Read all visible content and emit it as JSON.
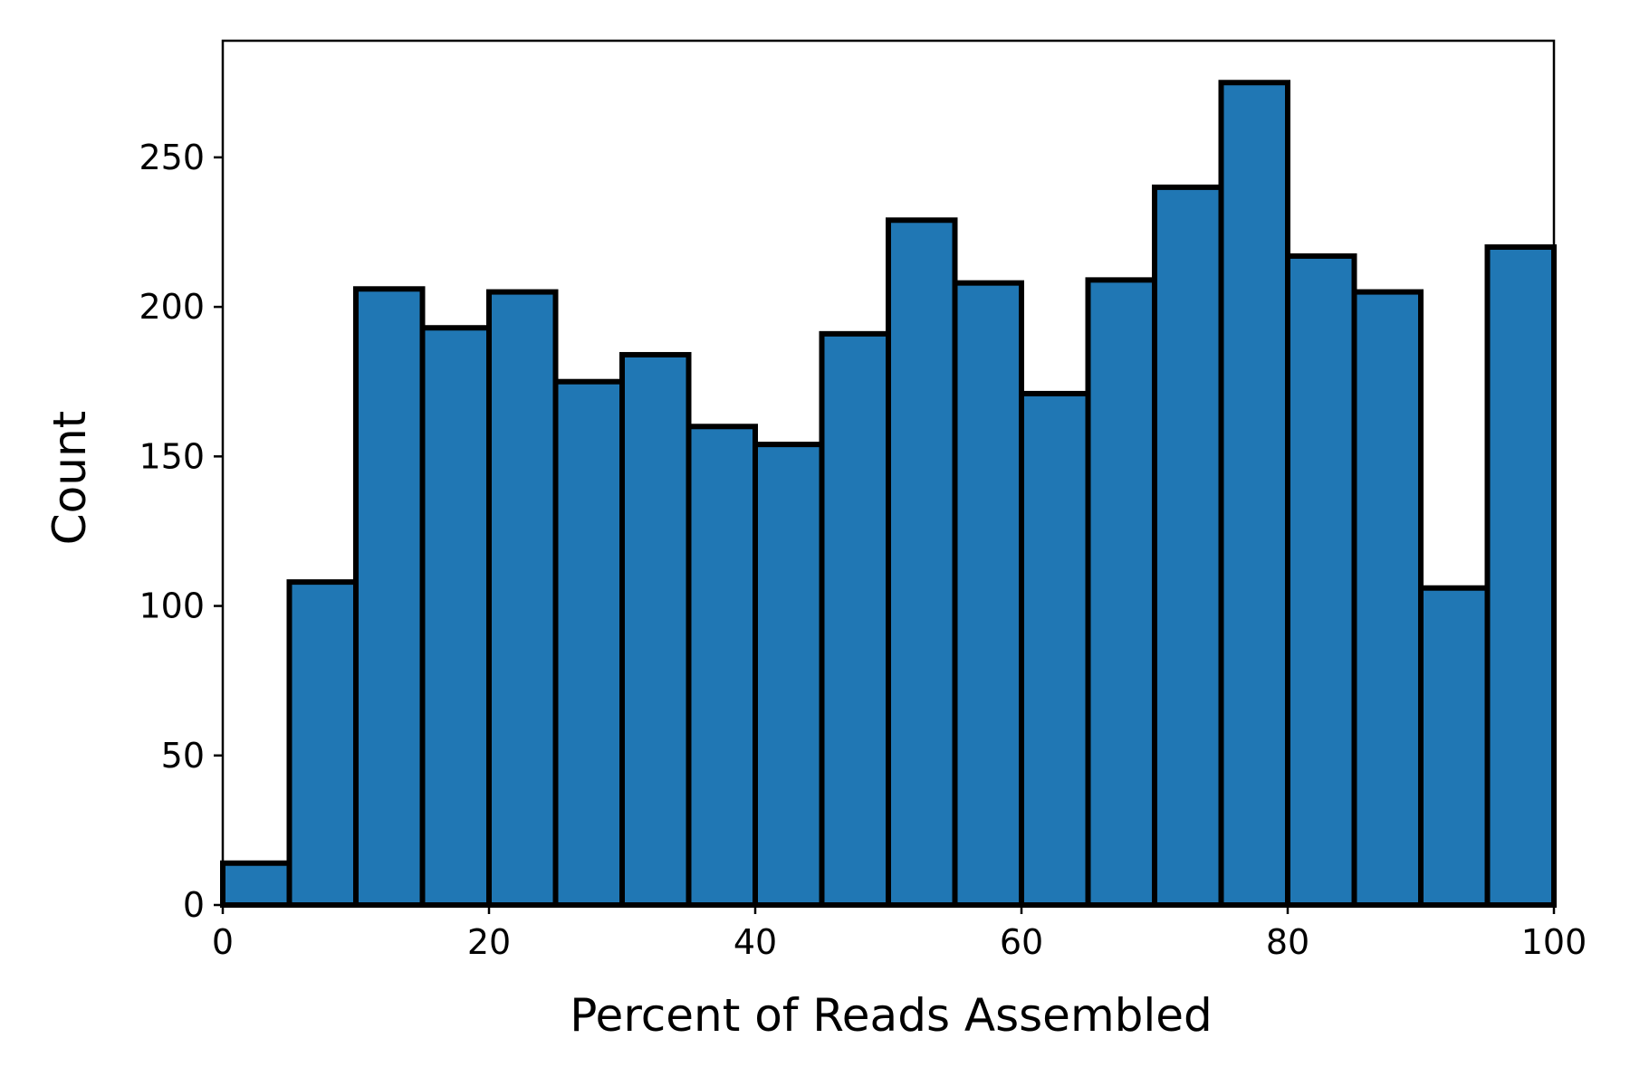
{
  "chart_data": {
    "type": "bar",
    "title": "",
    "xlabel": "Percent of Reads Assembled",
    "ylabel": "Count",
    "xlim": [
      0,
      100
    ],
    "ylim": [
      0,
      289
    ],
    "bin_edges": [
      0,
      5,
      10,
      15,
      20,
      25,
      30,
      35,
      40,
      45,
      50,
      55,
      60,
      65,
      70,
      75,
      80,
      85,
      90,
      95,
      100
    ],
    "values": [
      14,
      108,
      206,
      193,
      205,
      175,
      184,
      160,
      154,
      191,
      229,
      208,
      171,
      209,
      240,
      275,
      217,
      205,
      106,
      220
    ],
    "x_ticks": [
      0,
      20,
      40,
      60,
      80,
      100
    ],
    "x_tick_labels": [
      "0",
      "20",
      "40",
      "60",
      "80",
      "100"
    ],
    "y_ticks": [
      0,
      50,
      100,
      150,
      200,
      250
    ],
    "y_tick_labels": [
      "0",
      "50",
      "100",
      "150",
      "200",
      "250"
    ],
    "grid": false,
    "legend": "none",
    "colors": {
      "bar_fill": "#2077b4",
      "bar_edge": "#000000"
    }
  }
}
